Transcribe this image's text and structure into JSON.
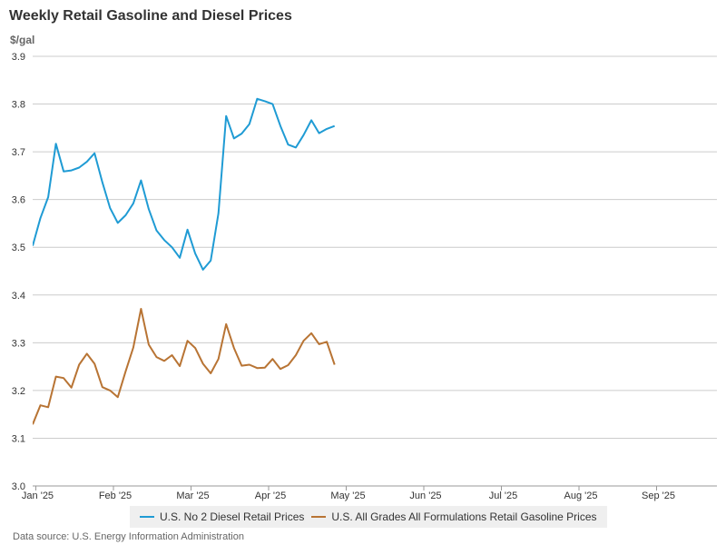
{
  "chart_data": {
    "type": "line",
    "title": "Weekly Retail Gasoline and Diesel Prices",
    "ylabel": "$/gal",
    "xlabel": "",
    "ylim": [
      3.0,
      3.9
    ],
    "yticks": [
      "3.0",
      "3.1",
      "3.2",
      "3.3",
      "3.4",
      "3.5",
      "3.6",
      "3.7",
      "3.8",
      "3.9"
    ],
    "xticks": [
      "Jan '25",
      "Feb '25",
      "Mar '25",
      "Apr '25",
      "May '25",
      "Jun '25",
      "Jul '25",
      "Aug '25",
      "Sep '25"
    ],
    "x_weeks": 40,
    "series": [
      {
        "name": "U.S. No 2 Diesel Retail Prices",
        "color": "#1f9bd4",
        "values": [
          3.503,
          3.561,
          3.605,
          3.717,
          3.659,
          3.661,
          3.667,
          3.679,
          3.697,
          3.636,
          3.582,
          3.551,
          3.567,
          3.592,
          3.64,
          3.58,
          3.535,
          3.515,
          3.5,
          3.478,
          3.537,
          3.487,
          3.453,
          3.472,
          3.571,
          3.775,
          3.728,
          3.738,
          3.758,
          3.811,
          3.806,
          3.8,
          3.754,
          3.715,
          3.709,
          3.735,
          3.766,
          3.739,
          3.748,
          3.754
        ]
      },
      {
        "name": "U.S. All Grades All Formulations Retail Gasoline Prices",
        "color": "#b87434",
        "values": [
          3.129,
          3.169,
          3.165,
          3.229,
          3.226,
          3.206,
          3.254,
          3.277,
          3.256,
          3.207,
          3.2,
          3.186,
          3.24,
          3.29,
          3.371,
          3.296,
          3.27,
          3.262,
          3.274,
          3.251,
          3.304,
          3.289,
          3.256,
          3.236,
          3.266,
          3.339,
          3.289,
          3.252,
          3.254,
          3.247,
          3.248,
          3.266,
          3.245,
          3.253,
          3.274,
          3.304,
          3.32,
          3.297,
          3.302,
          3.254
        ]
      }
    ],
    "legend_position": "bottom-center",
    "grid": true
  },
  "footer": {
    "source": "Data source: U.S. Energy Information Administration"
  }
}
